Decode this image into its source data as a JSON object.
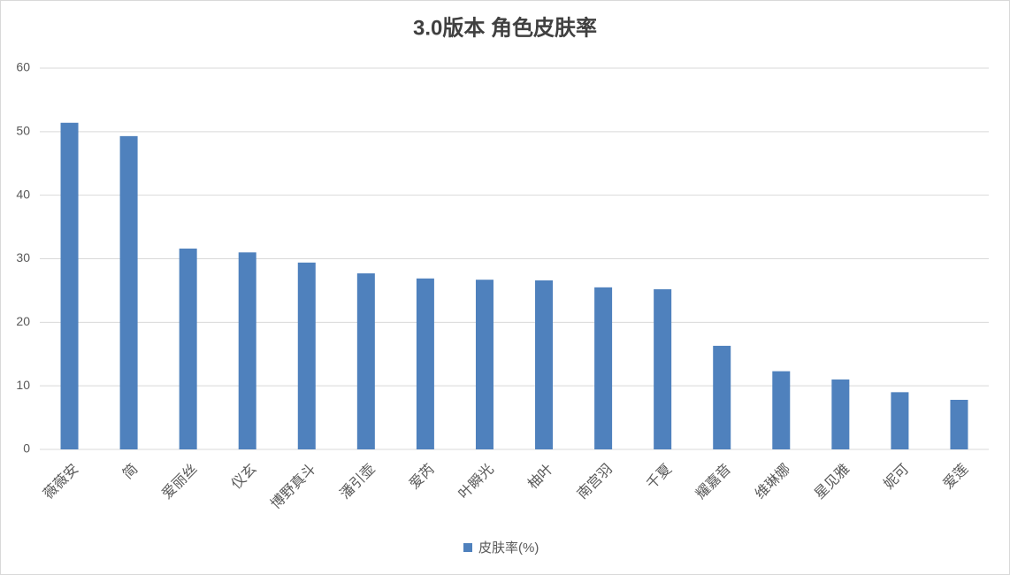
{
  "chart_data": {
    "type": "bar",
    "title": "3.0版本 角色皮肤率",
    "categories": [
      "薇薇安",
      "简",
      "爱丽丝",
      "仪玄",
      "博野真斗",
      "潘引壶",
      "爱芮",
      "叶瞬光",
      "柚叶",
      "南宫羽",
      "千夏",
      "耀嘉音",
      "维琳娜",
      "星见雅",
      "妮可",
      "爱莲"
    ],
    "series": [
      {
        "name": "皮肤率(%)",
        "color": "#4f81bd",
        "values": [
          51.4,
          49.3,
          31.6,
          31.0,
          29.4,
          27.7,
          26.9,
          26.7,
          26.6,
          25.5,
          25.2,
          16.3,
          12.3,
          11.0,
          9.0,
          7.8
        ]
      }
    ],
    "ylim": [
      0,
      60
    ],
    "yticks": [
      0,
      10,
      20,
      30,
      40,
      50,
      60
    ],
    "grid": true,
    "legend": "bottom"
  }
}
